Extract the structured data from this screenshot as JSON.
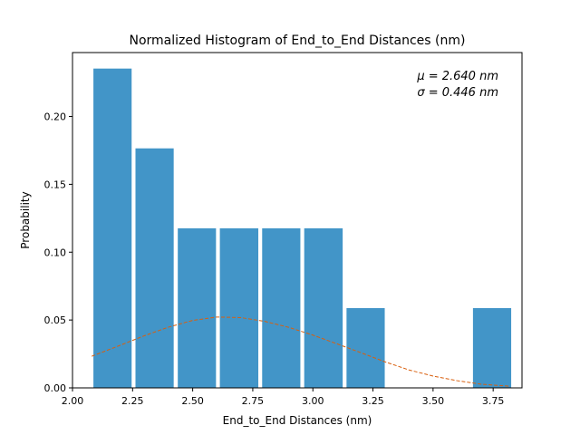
{
  "chart_data": {
    "type": "bar",
    "title": "Normalized Histogram of End_to_End Distances (nm)",
    "xlabel": "End_to_End Distances (nm)",
    "ylabel": "Probability",
    "xlim": [
      2.0,
      3.87
    ],
    "ylim": [
      0.0,
      0.2471
    ],
    "x_ticks": [
      2.0,
      2.25,
      2.5,
      2.75,
      3.0,
      3.25,
      3.5,
      3.75
    ],
    "x_tick_labels": [
      "2.00",
      "2.25",
      "2.50",
      "2.75",
      "3.00",
      "3.25",
      "3.50",
      "3.75"
    ],
    "y_ticks": [
      0.0,
      0.05,
      0.1,
      0.15,
      0.2
    ],
    "y_tick_labels": [
      "0.00",
      "0.05",
      "0.10",
      "0.15",
      "0.20"
    ],
    "bars": [
      {
        "x_start": 2.087,
        "x_end": 2.246,
        "value": 0.2353
      },
      {
        "x_start": 2.262,
        "x_end": 2.421,
        "value": 0.1765
      },
      {
        "x_start": 2.438,
        "x_end": 2.597,
        "value": 0.1176
      },
      {
        "x_start": 2.613,
        "x_end": 2.773,
        "value": 0.1176
      },
      {
        "x_start": 2.789,
        "x_end": 2.948,
        "value": 0.1176
      },
      {
        "x_start": 2.964,
        "x_end": 3.124,
        "value": 0.1176
      },
      {
        "x_start": 3.14,
        "x_end": 3.299,
        "value": 0.0588
      },
      {
        "x_start": 3.315,
        "x_end": 3.474,
        "value": 0.0
      },
      {
        "x_start": 3.491,
        "x_end": 3.65,
        "value": 0.0
      },
      {
        "x_start": 3.666,
        "x_end": 3.825,
        "value": 0.0588
      }
    ],
    "fit_curve": {
      "x": [
        2.08,
        2.2,
        2.3,
        2.4,
        2.5,
        2.6,
        2.7,
        2.8,
        2.9,
        3.0,
        3.1,
        3.2,
        3.3,
        3.4,
        3.5,
        3.6,
        3.7,
        3.82
      ],
      "y": [
        0.0233,
        0.0315,
        0.0385,
        0.0448,
        0.0497,
        0.0522,
        0.0518,
        0.049,
        0.0446,
        0.0389,
        0.0325,
        0.0259,
        0.0192,
        0.0132,
        0.0087,
        0.0053,
        0.0027,
        0.0012
      ]
    },
    "annotations": [
      "μ  =  2.640 nm",
      "σ  =  0.446 nm"
    ],
    "grid": false,
    "colors": {
      "bar": "#4295c8",
      "fit": "#d95f0e",
      "axis": "#000000"
    }
  }
}
